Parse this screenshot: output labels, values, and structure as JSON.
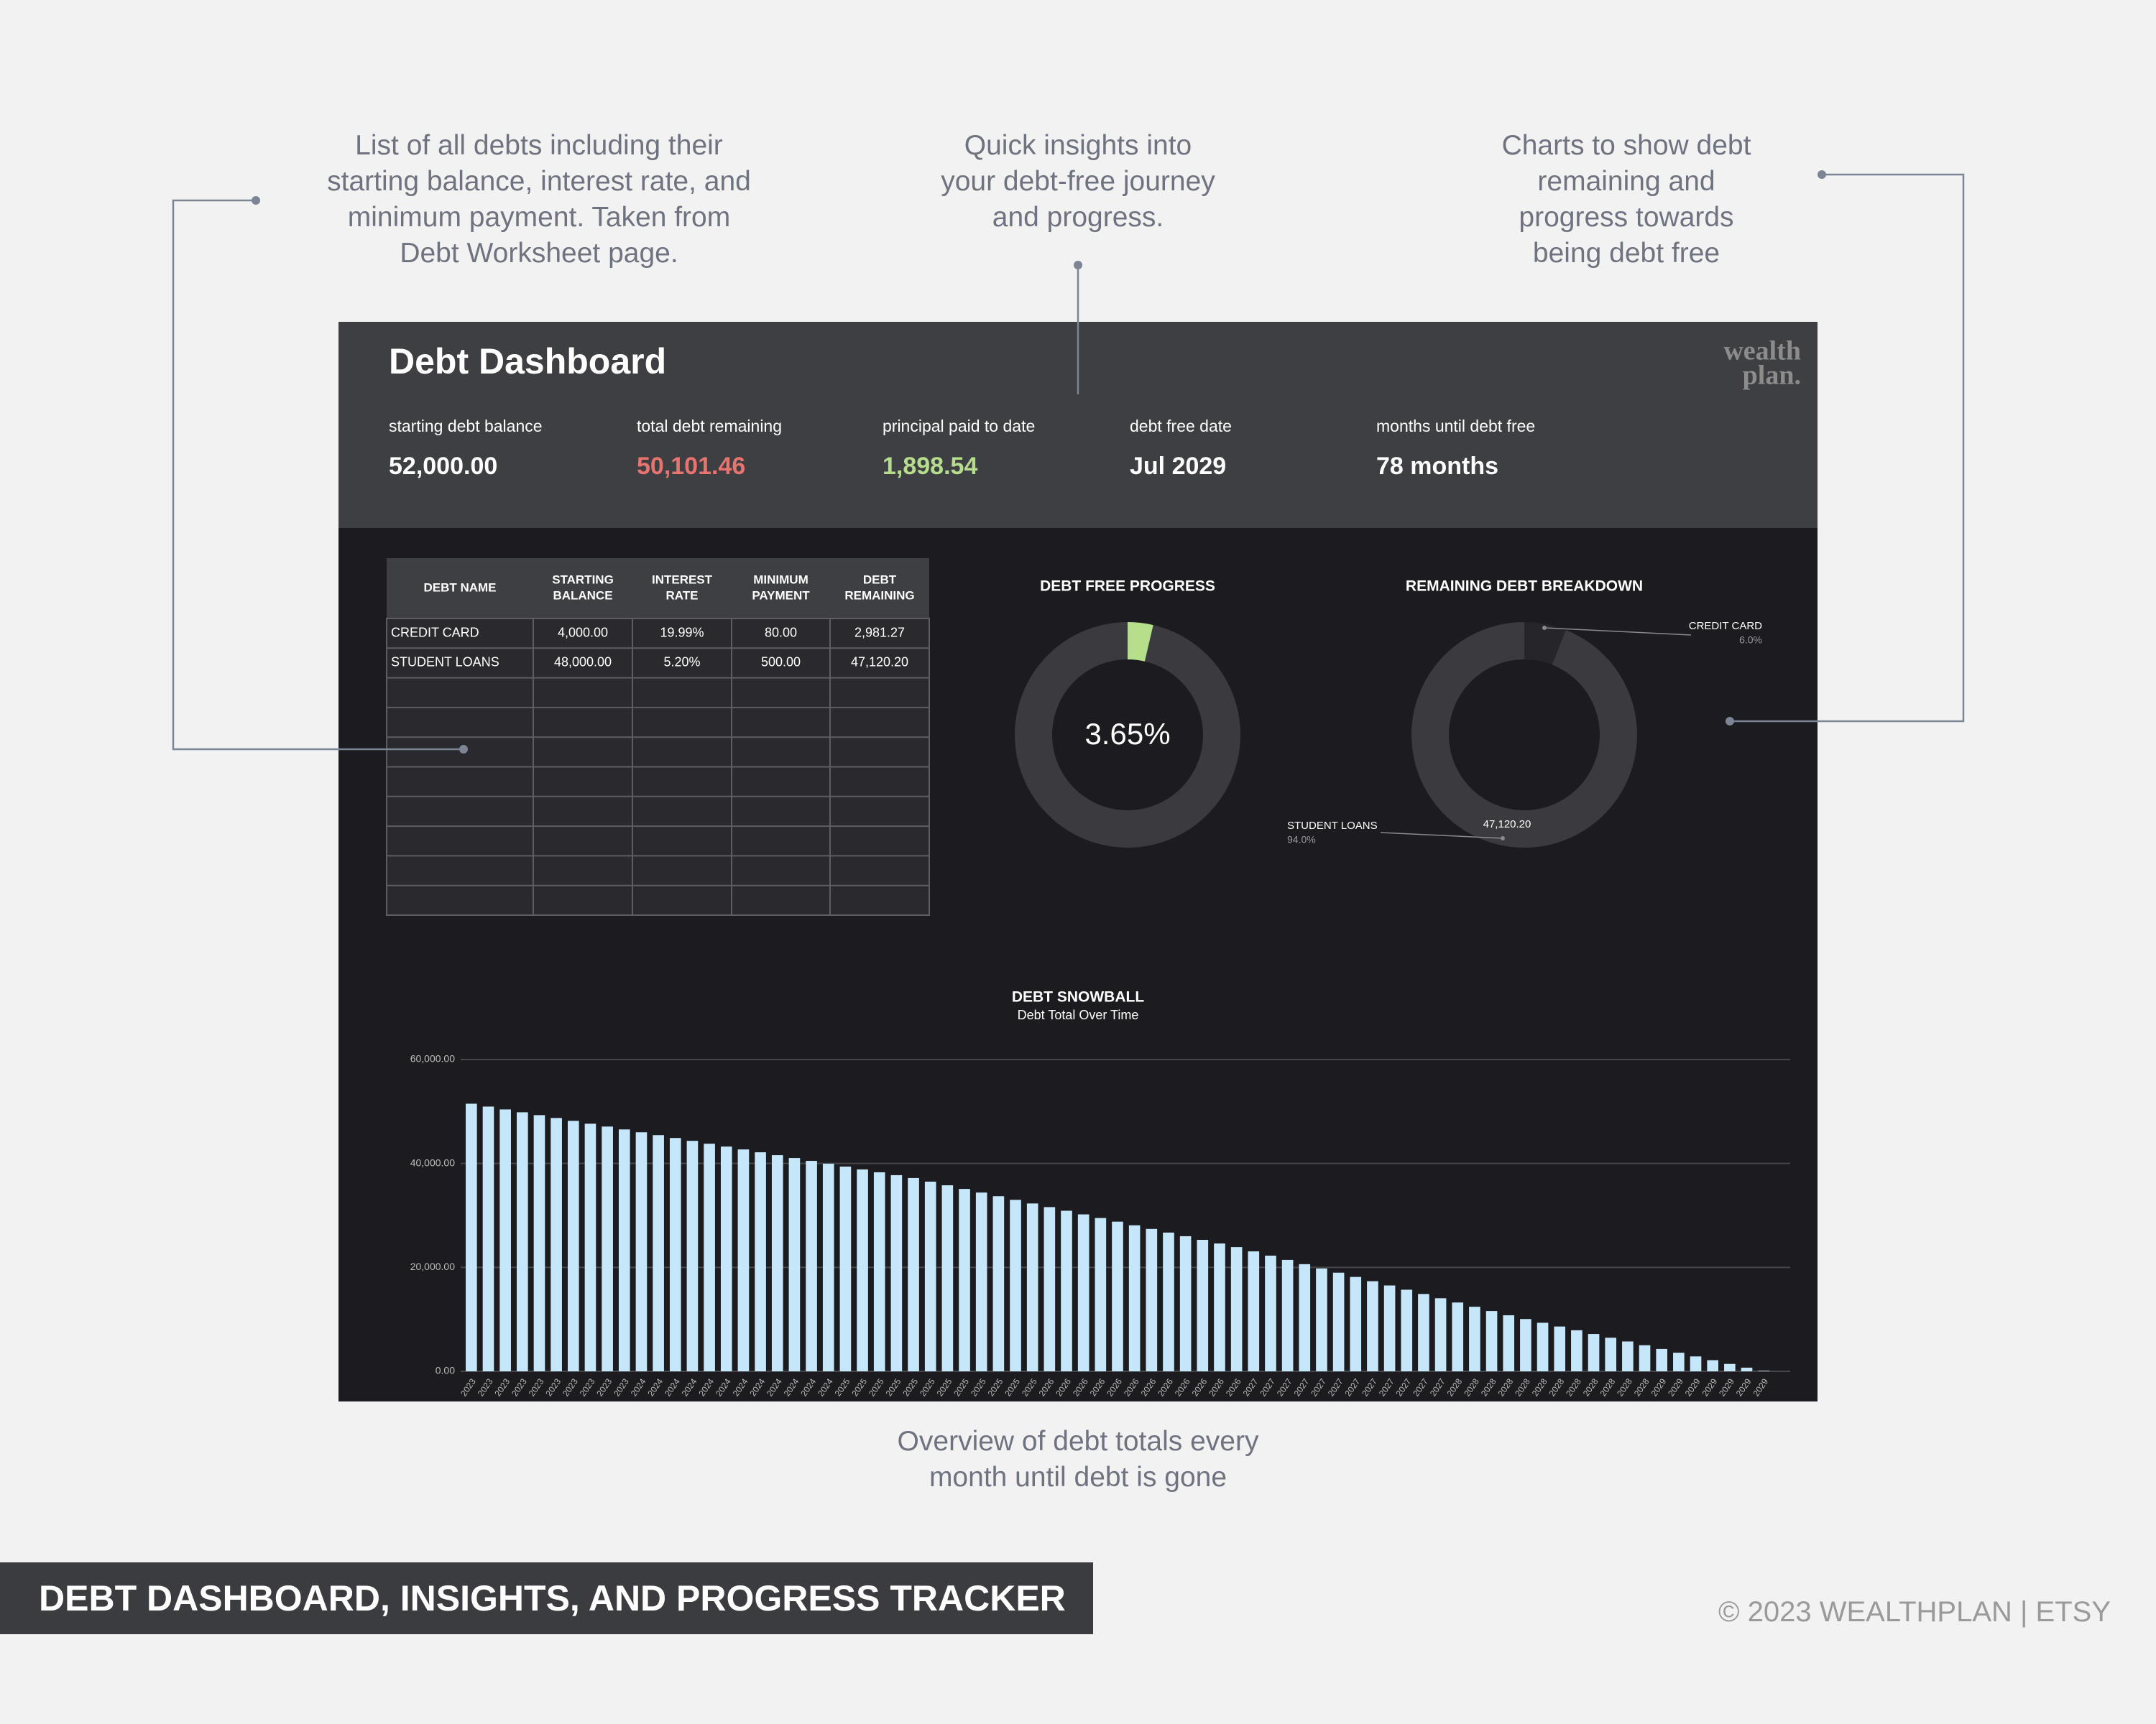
{
  "callouts": [
    [
      "List of all debts including their",
      "starting balance, interest rate, and",
      "minimum payment. Taken from",
      "Debt Worksheet page."
    ],
    [
      "Quick insights into",
      "your debt-free journey",
      "and progress."
    ],
    [
      "Charts to show debt",
      "remaining and",
      "progress towards",
      "being debt free"
    ]
  ],
  "callout_bottom": [
    "Overview of debt totals every",
    "month until debt is gone"
  ],
  "dashboard": {
    "title": "Debt Dashboard",
    "logo": [
      "wealth",
      "plan."
    ],
    "stats": [
      {
        "label": "starting debt balance",
        "value": "52,000.00",
        "color": "#ffffff"
      },
      {
        "label": "total debt remaining",
        "value": "50,101.46",
        "color": "#e8746f"
      },
      {
        "label": "principal paid to date",
        "value": "1,898.54",
        "color": "#b6dc8e"
      },
      {
        "label": "debt free date",
        "value": "Jul 2029",
        "color": "#ffffff"
      },
      {
        "label": "months until debt free",
        "value": "78 months",
        "color": "#ffffff"
      }
    ]
  },
  "table": {
    "headers": [
      [
        "DEBT NAME"
      ],
      [
        "STARTING",
        "BALANCE"
      ],
      [
        "INTEREST",
        "RATE"
      ],
      [
        "MINIMUM",
        "PAYMENT"
      ],
      [
        "DEBT",
        "REMAINING"
      ]
    ],
    "rows": [
      [
        "CREDIT CARD",
        "4,000.00",
        "19.99%",
        "80.00",
        "2,981.27"
      ],
      [
        "STUDENT LOANS",
        "48,000.00",
        "5.20%",
        "500.00",
        "47,120.20"
      ]
    ]
  },
  "chart_data": [
    {
      "type": "donut",
      "title": "DEBT FREE PROGRESS",
      "values": [
        3.65
      ],
      "value_labels": [
        "3.65%"
      ],
      "colors": [
        "#b6df8c"
      ],
      "track_color": "#3b3b3f"
    },
    {
      "type": "donut",
      "title": "REMAINING DEBT BREAKDOWN",
      "categories": [
        "CREDIT CARD",
        "STUDENT LOANS"
      ],
      "values": [
        6.0,
        94.0
      ],
      "value_labels": [
        "6.0%",
        "94.0%"
      ],
      "colors": [
        "#26262a",
        "#3b3b3f"
      ],
      "annotations": [
        {
          "text": "47,120.20"
        }
      ]
    },
    {
      "type": "bar",
      "title": "DEBT SNOWBALL",
      "subtitle": "Debt Total Over Time",
      "categories": [
        "2023",
        "2023",
        "2023",
        "2023",
        "2023",
        "2023",
        "2023",
        "2023",
        "2023",
        "2023",
        "2024",
        "2024",
        "2024",
        "2024",
        "2024",
        "2024",
        "2024",
        "2024",
        "2024",
        "2024",
        "2024",
        "2024",
        "2025",
        "2025",
        "2025",
        "2025",
        "2025",
        "2025",
        "2025",
        "2025",
        "2025",
        "2025",
        "2025",
        "2025",
        "2026",
        "2026",
        "2026",
        "2026",
        "2026",
        "2026",
        "2026",
        "2026",
        "2026",
        "2026",
        "2026",
        "2026",
        "2027",
        "2027",
        "2027",
        "2027",
        "2027",
        "2027",
        "2027",
        "2027",
        "2027",
        "2027",
        "2027",
        "2027",
        "2028",
        "2028",
        "2028",
        "2028",
        "2028",
        "2028",
        "2028",
        "2028",
        "2028",
        "2028",
        "2028",
        "2028",
        "2029",
        "2029",
        "2029",
        "2029",
        "2029",
        "2029",
        "2029"
      ],
      "values": [
        51500,
        50950,
        50400,
        49850,
        49300,
        48750,
        48200,
        47650,
        47100,
        46550,
        46000,
        45450,
        44900,
        44350,
        43800,
        43250,
        42700,
        42150,
        41600,
        41050,
        40500,
        39950,
        39400,
        38850,
        38300,
        37750,
        37200,
        36500,
        35800,
        35100,
        34400,
        33700,
        33000,
        32300,
        31600,
        30900,
        30200,
        29500,
        28800,
        28100,
        27400,
        26700,
        26000,
        25300,
        24600,
        23900,
        23080,
        22260,
        21440,
        20620,
        19800,
        18980,
        18160,
        17340,
        16520,
        15700,
        14880,
        14060,
        13240,
        12420,
        11600,
        10780,
        10060,
        9340,
        8620,
        7900,
        7180,
        6460,
        5740,
        5020,
        4300,
        3580,
        2860,
        2140,
        1420,
        700,
        100
      ],
      "color": "#c6e7f9",
      "ylim": [
        0,
        60000
      ],
      "yticks": [
        {
          "value": 0,
          "label": "0.00"
        },
        {
          "value": 20000,
          "label": "20,000.00"
        },
        {
          "value": 40000,
          "label": "40,000.00"
        },
        {
          "value": 60000,
          "label": "60,000.00"
        }
      ],
      "grid": true
    }
  ],
  "banner": "DEBT DASHBOARD, INSIGHTS, AND PROGRESS TRACKER",
  "copyright": "© 2023 WEALTHPLAN | ETSY"
}
